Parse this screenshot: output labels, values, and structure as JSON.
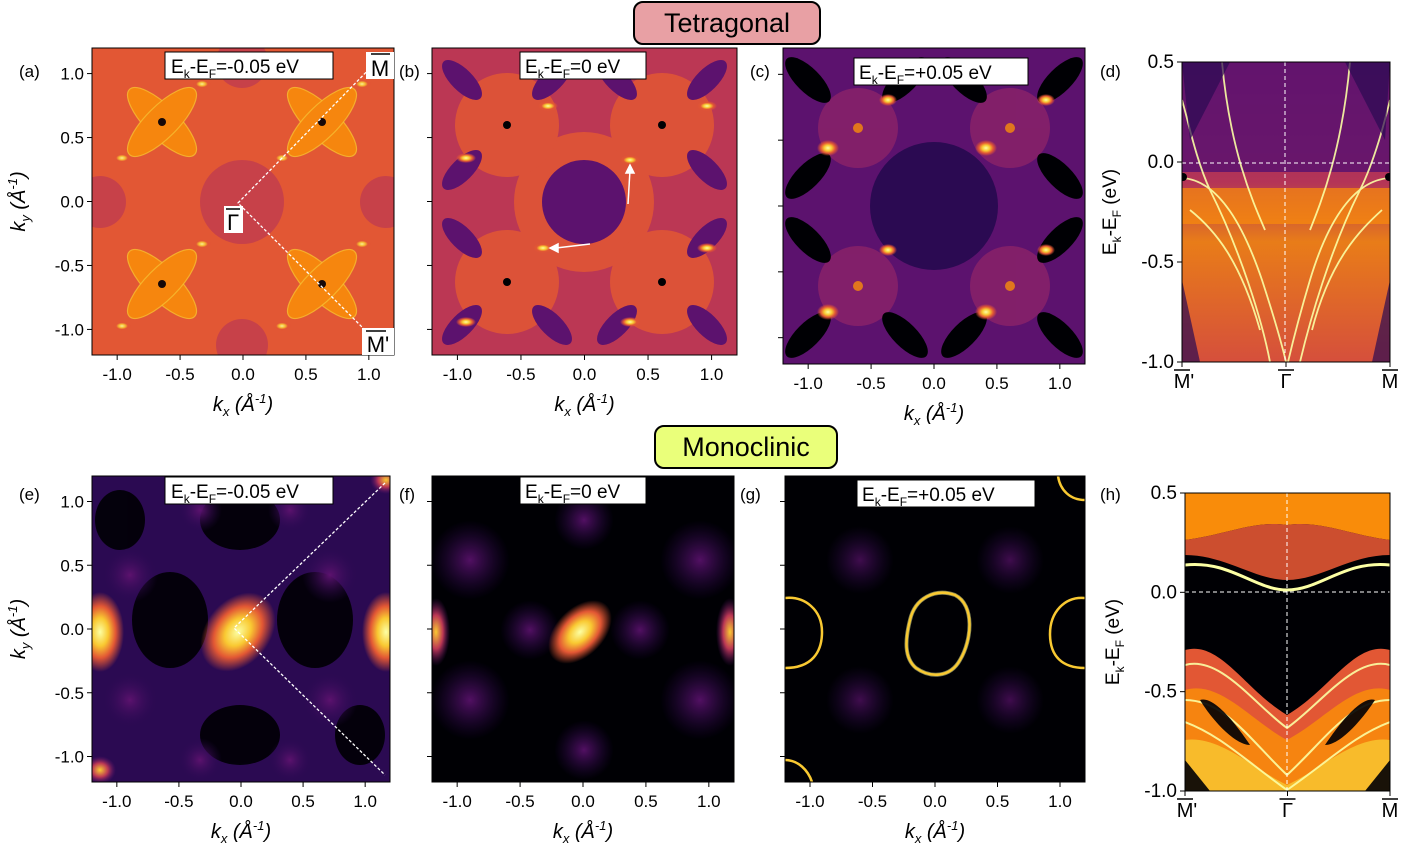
{
  "sections": {
    "top": "Tetragonal",
    "bottom": "Monoclinic"
  },
  "section_colors": {
    "top_fill": "#e8a0a4",
    "bottom_fill": "#eaff7a"
  },
  "colormap": [
    "#000004",
    "#2b0a52",
    "#5c126e",
    "#8c2369",
    "#bb3754",
    "#e25734",
    "#f98c0a",
    "#f9c932",
    "#fcffa4"
  ],
  "map_axes": {
    "ticks": [
      "-1.0",
      "-0.5",
      "0.0",
      "0.5",
      "1.0"
    ],
    "ytick_labels": [
      "1.0",
      "0.5",
      "0.0",
      "-0.5",
      "-1.0"
    ],
    "xlabel_main": "k",
    "xlabel_sub": "x",
    "xlabel_unit": "(Å",
    "xlabel_exp": "-1",
    "xlabel_close": ")",
    "ylabel_main": "k",
    "ylabel_sub": "y",
    "ylabel_unit": "(Å",
    "ylabel_exp": "-1",
    "ylabel_close": ")"
  },
  "band_axes": {
    "ytick_labels": [
      "0.5",
      "0.0",
      "-0.5",
      "-1.0"
    ],
    "xtick_labels": [
      "M'",
      "Γ",
      "M"
    ],
    "ylabel_E": "E",
    "ylabel_k": "k",
    "ylabel_dash": "-E",
    "ylabel_F": "F",
    "ylabel_unit": " (eV)"
  },
  "panels": [
    {
      "letter": "(a)",
      "energy_value": "=-0.05 eV"
    },
    {
      "letter": "(b)",
      "energy_value": "=0 eV"
    },
    {
      "letter": "(c)",
      "energy_value": "=+0.05 eV"
    },
    {
      "letter": "(d)"
    },
    {
      "letter": "(e)",
      "energy_value": "=-0.05 eV"
    },
    {
      "letter": "(f)",
      "energy_value": "=0 eV"
    },
    {
      "letter": "(g)",
      "energy_value": "=+0.05 eV"
    },
    {
      "letter": "(h)"
    }
  ],
  "energy_label": {
    "E": "E",
    "k": "k",
    "dash": "-E",
    "F": "F"
  },
  "hsp_labels": {
    "M": "M",
    "M_prime": "M'",
    "Gamma": "Γ"
  },
  "chart_data": [
    {
      "type": "heatmap",
      "panel": "(a)",
      "title": "Ek-EF=-0.05 eV",
      "xlabel": "kx (Å-1)",
      "ylabel": "ky (Å-1)",
      "xlim": [
        -1.2,
        1.2
      ],
      "ylim": [
        -1.2,
        1.2
      ]
    },
    {
      "type": "heatmap",
      "panel": "(b)",
      "title": "Ek-EF=0 eV",
      "xlabel": "kx (Å-1)",
      "xlim": [
        -1.2,
        1.2
      ],
      "ylim": [
        -1.2,
        1.2
      ]
    },
    {
      "type": "heatmap",
      "panel": "(c)",
      "title": "Ek-EF=+0.05 eV",
      "xlabel": "kx (Å-1)",
      "xlim": [
        -1.2,
        1.2
      ],
      "ylim": [
        -1.2,
        1.2
      ]
    },
    {
      "type": "heatmap",
      "panel": "(d)",
      "ylabel": "Ek-EF (eV)",
      "ylim": [
        -1.0,
        0.5
      ],
      "xticks": [
        "M'",
        "Γ",
        "M"
      ]
    },
    {
      "type": "heatmap",
      "panel": "(e)",
      "title": "Ek-EF=-0.05 eV",
      "xlabel": "kx (Å-1)",
      "ylabel": "ky (Å-1)",
      "xlim": [
        -1.2,
        1.2
      ],
      "ylim": [
        -1.2,
        1.2
      ]
    },
    {
      "type": "heatmap",
      "panel": "(f)",
      "title": "Ek-EF=0 eV",
      "xlabel": "kx (Å-1)",
      "xlim": [
        -1.2,
        1.2
      ],
      "ylim": [
        -1.2,
        1.2
      ]
    },
    {
      "type": "heatmap",
      "panel": "(g)",
      "title": "Ek-EF=+0.05 eV",
      "xlabel": "kx (Å-1)",
      "xlim": [
        -1.2,
        1.2
      ],
      "ylim": [
        -1.2,
        1.2
      ]
    },
    {
      "type": "heatmap",
      "panel": "(h)",
      "ylabel": "Ek-EF (eV)",
      "ylim": [
        -1.0,
        0.5
      ],
      "xticks": [
        "M'",
        "Γ",
        "M"
      ]
    }
  ]
}
